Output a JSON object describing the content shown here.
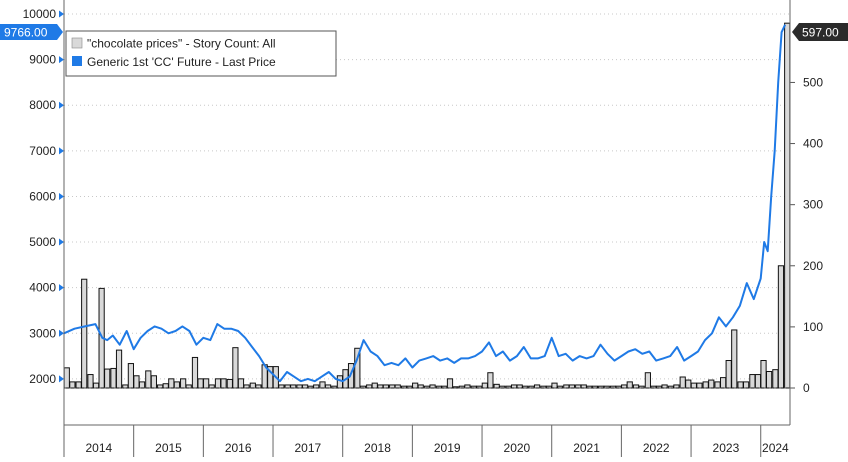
{
  "chart_data": {
    "type": "bar+line",
    "title": "",
    "legend": {
      "placement": "top-left",
      "entries": [
        {
          "label": "\"chocolate prices\" - Story Count: All",
          "color": "#d9d9d9"
        },
        {
          "label": "Generic 1st 'CC' Future - Last Price",
          "color": "#1f7ae6"
        }
      ]
    },
    "left_axis": {
      "ticks": [
        2000,
        3000,
        4000,
        5000,
        6000,
        7000,
        8000,
        9000,
        10000
      ],
      "ylim": [
        1800,
        10000
      ]
    },
    "right_axis": {
      "ticks": [
        0,
        100,
        200,
        300,
        400,
        500
      ],
      "ylim": [
        0,
        612
      ]
    },
    "x_axis": {
      "years": [
        "2014",
        "2015",
        "2016",
        "2017",
        "2018",
        "2019",
        "2020",
        "2021",
        "2022",
        "2023",
        "2024"
      ],
      "start": 2014.0,
      "end": 2024.42
    },
    "last_value_labels": {
      "line": "9766.00",
      "bars": "597.00"
    },
    "series": [
      {
        "name": "Generic 1st 'CC' Future - Last Price",
        "axis": "left",
        "x": [
          2014.0,
          2014.15,
          2014.3,
          2014.45,
          2014.55,
          2014.62,
          2014.7,
          2014.8,
          2014.9,
          2015.0,
          2015.1,
          2015.2,
          2015.3,
          2015.4,
          2015.5,
          2015.6,
          2015.7,
          2015.8,
          2015.9,
          2016.0,
          2016.1,
          2016.2,
          2016.3,
          2016.4,
          2016.5,
          2016.6,
          2016.7,
          2016.8,
          2016.9,
          2017.0,
          2017.1,
          2017.2,
          2017.3,
          2017.4,
          2017.5,
          2017.6,
          2017.7,
          2017.8,
          2017.9,
          2018.0,
          2018.1,
          2018.2,
          2018.3,
          2018.4,
          2018.5,
          2018.6,
          2018.7,
          2018.8,
          2018.9,
          2019.0,
          2019.1,
          2019.2,
          2019.3,
          2019.4,
          2019.5,
          2019.6,
          2019.7,
          2019.8,
          2019.9,
          2020.0,
          2020.1,
          2020.2,
          2020.3,
          2020.4,
          2020.5,
          2020.6,
          2020.7,
          2020.8,
          2020.9,
          2021.0,
          2021.1,
          2021.2,
          2021.3,
          2021.4,
          2021.5,
          2021.6,
          2021.7,
          2021.8,
          2021.9,
          2022.0,
          2022.1,
          2022.2,
          2022.3,
          2022.4,
          2022.5,
          2022.6,
          2022.7,
          2022.8,
          2022.9,
          2023.0,
          2023.1,
          2023.2,
          2023.3,
          2023.4,
          2023.5,
          2023.6,
          2023.7,
          2023.8,
          2023.9,
          2024.0,
          2024.05,
          2024.1,
          2024.15,
          2024.2,
          2024.25,
          2024.3,
          2024.35
        ],
        "values": [
          3000,
          3100,
          3150,
          3200,
          2900,
          2850,
          2950,
          2750,
          3050,
          2650,
          2900,
          3050,
          3150,
          3100,
          3000,
          3050,
          3150,
          3050,
          2750,
          2900,
          2850,
          3200,
          3100,
          3100,
          3050,
          2900,
          2700,
          2500,
          2250,
          2100,
          1950,
          2150,
          2050,
          1950,
          2000,
          1950,
          2050,
          2150,
          2000,
          1950,
          2050,
          2400,
          2850,
          2600,
          2500,
          2300,
          2350,
          2300,
          2450,
          2250,
          2400,
          2450,
          2500,
          2400,
          2450,
          2350,
          2450,
          2450,
          2500,
          2600,
          2800,
          2500,
          2600,
          2400,
          2500,
          2700,
          2450,
          2450,
          2500,
          2900,
          2500,
          2550,
          2400,
          2500,
          2450,
          2500,
          2750,
          2550,
          2400,
          2500,
          2600,
          2650,
          2550,
          2600,
          2400,
          2450,
          2500,
          2700,
          2400,
          2500,
          2600,
          2850,
          3000,
          3350,
          3150,
          3350,
          3600,
          4100,
          3750,
          4200,
          5000,
          4800,
          6000,
          7000,
          8500,
          9600,
          9766
        ]
      },
      {
        "name": "\"chocolate prices\" - Story Count: All",
        "axis": "right",
        "x": [
          2014.04,
          2014.12,
          2014.21,
          2014.29,
          2014.38,
          2014.46,
          2014.54,
          2014.62,
          2014.71,
          2014.79,
          2014.88,
          2014.96,
          2015.04,
          2015.12,
          2015.21,
          2015.29,
          2015.38,
          2015.46,
          2015.54,
          2015.62,
          2015.71,
          2015.79,
          2015.88,
          2015.96,
          2016.04,
          2016.12,
          2016.21,
          2016.29,
          2016.38,
          2016.46,
          2016.54,
          2016.62,
          2016.71,
          2016.79,
          2016.88,
          2016.96,
          2017.04,
          2017.12,
          2017.21,
          2017.29,
          2017.38,
          2017.46,
          2017.54,
          2017.62,
          2017.71,
          2017.79,
          2017.88,
          2017.96,
          2018.04,
          2018.12,
          2018.21,
          2018.29,
          2018.38,
          2018.46,
          2018.54,
          2018.62,
          2018.71,
          2018.79,
          2018.88,
          2018.96,
          2019.04,
          2019.12,
          2019.21,
          2019.29,
          2019.38,
          2019.46,
          2019.54,
          2019.62,
          2019.71,
          2019.79,
          2019.88,
          2019.96,
          2020.04,
          2020.12,
          2020.21,
          2020.29,
          2020.38,
          2020.46,
          2020.54,
          2020.62,
          2020.71,
          2020.79,
          2020.88,
          2020.96,
          2021.04,
          2021.12,
          2021.21,
          2021.29,
          2021.38,
          2021.46,
          2021.54,
          2021.62,
          2021.71,
          2021.79,
          2021.88,
          2021.96,
          2022.04,
          2022.12,
          2022.21,
          2022.29,
          2022.38,
          2022.46,
          2022.54,
          2022.62,
          2022.71,
          2022.79,
          2022.88,
          2022.96,
          2023.04,
          2023.12,
          2023.21,
          2023.29,
          2023.38,
          2023.46,
          2023.54,
          2023.62,
          2023.71,
          2023.79,
          2023.88,
          2023.96,
          2024.04,
          2024.12,
          2024.21,
          2024.29,
          2024.38
        ],
        "values": [
          33,
          10,
          10,
          178,
          22,
          8,
          163,
          31,
          32,
          62,
          5,
          40,
          20,
          10,
          28,
          20,
          5,
          7,
          15,
          10,
          15,
          5,
          50,
          15,
          15,
          5,
          15,
          15,
          14,
          66,
          15,
          5,
          8,
          5,
          38,
          35,
          35,
          5,
          5,
          5,
          5,
          5,
          3,
          5,
          10,
          5,
          3,
          20,
          30,
          40,
          65,
          3,
          5,
          8,
          5,
          5,
          5,
          5,
          3,
          3,
          8,
          5,
          3,
          5,
          3,
          3,
          15,
          2,
          3,
          5,
          3,
          3,
          8,
          25,
          6,
          3,
          3,
          5,
          5,
          3,
          3,
          5,
          3,
          3,
          8,
          3,
          5,
          5,
          5,
          5,
          3,
          3,
          3,
          3,
          3,
          3,
          5,
          10,
          5,
          3,
          25,
          3,
          3,
          5,
          3,
          5,
          18,
          13,
          8,
          8,
          10,
          13,
          10,
          17,
          45,
          95,
          10,
          10,
          22,
          22,
          45,
          27,
          30,
          200,
          597
        ]
      }
    ]
  }
}
